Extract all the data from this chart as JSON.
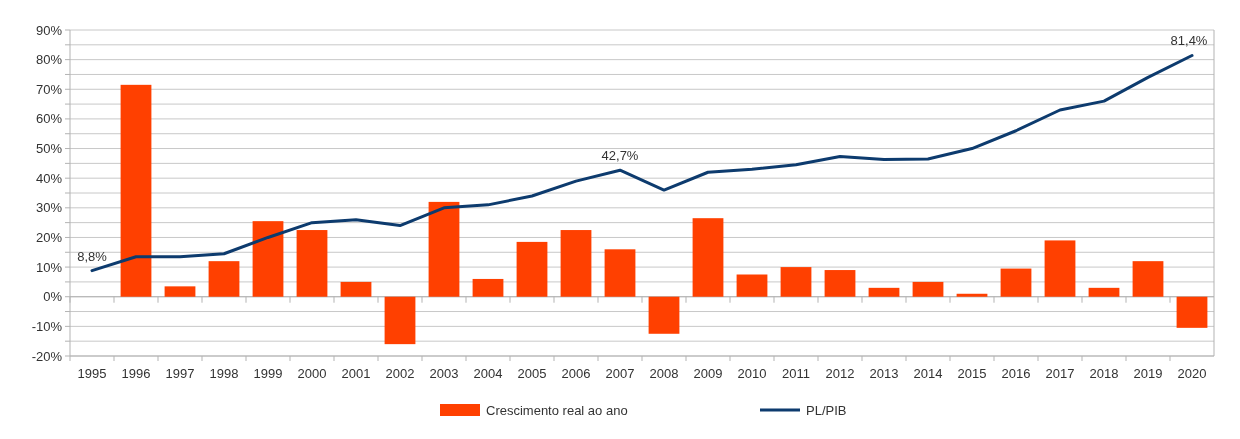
{
  "chart_data": {
    "type": "bar",
    "categories": [
      "1995",
      "1996",
      "1997",
      "1998",
      "1999",
      "2000",
      "2001",
      "2002",
      "2003",
      "2004",
      "2005",
      "2006",
      "2007",
      "2008",
      "2009",
      "2010",
      "2011",
      "2012",
      "2013",
      "2014",
      "2015",
      "2016",
      "2017",
      "2018",
      "2019",
      "2020"
    ],
    "series": [
      {
        "name": "Crescimento real ao ano",
        "color": "#ff4000",
        "values": [
          null,
          71.5,
          3.5,
          12,
          25.5,
          22.5,
          5,
          -16,
          32,
          6,
          18.5,
          22.5,
          16,
          -12.5,
          26.5,
          7.5,
          10,
          9,
          3,
          5,
          1,
          9.5,
          19,
          3,
          12,
          -10.5
        ]
      },
      {
        "name": "PL/PIB",
        "type": "line",
        "color": "#0d3b6e",
        "values": [
          8.8,
          13.5,
          13.5,
          14.5,
          20,
          25,
          26,
          24,
          30,
          31,
          34,
          39,
          42.7,
          36,
          42,
          43,
          44.5,
          47.3,
          46.3,
          46.5,
          50,
          56,
          63,
          66,
          74,
          81.4
        ],
        "value_labels": [
          "8,8%",
          null,
          null,
          null,
          null,
          null,
          null,
          null,
          null,
          null,
          null,
          null,
          "42,7%",
          null,
          null,
          null,
          null,
          null,
          null,
          null,
          null,
          null,
          null,
          null,
          null,
          "81,4%"
        ]
      }
    ],
    "ylim": [
      -20,
      90
    ],
    "yticks": [
      {
        "value": -20,
        "label": "-20%"
      },
      {
        "value": -15,
        "label": null
      },
      {
        "value": -10,
        "label": "-10%"
      },
      {
        "value": -5,
        "label": null
      },
      {
        "value": 0,
        "label": "0%"
      },
      {
        "value": 5,
        "label": null
      },
      {
        "value": 10,
        "label": "10%"
      },
      {
        "value": 15,
        "label": null
      },
      {
        "value": 20,
        "label": "20%"
      },
      {
        "value": 25,
        "label": null
      },
      {
        "value": 30,
        "label": "30%"
      },
      {
        "value": 35,
        "label": null
      },
      {
        "value": 40,
        "label": "40%"
      },
      {
        "value": 45,
        "label": null
      },
      {
        "value": 50,
        "label": "50%"
      },
      {
        "value": 55,
        "label": null
      },
      {
        "value": 60,
        "label": "60%"
      },
      {
        "value": 65,
        "label": null
      },
      {
        "value": 70,
        "label": "70%"
      },
      {
        "value": 75,
        "label": null
      },
      {
        "value": 80,
        "label": "80%"
      },
      {
        "value": 85,
        "label": null
      },
      {
        "value": 90,
        "label": "90%"
      }
    ],
    "grid": "y",
    "legend": "bottom"
  }
}
